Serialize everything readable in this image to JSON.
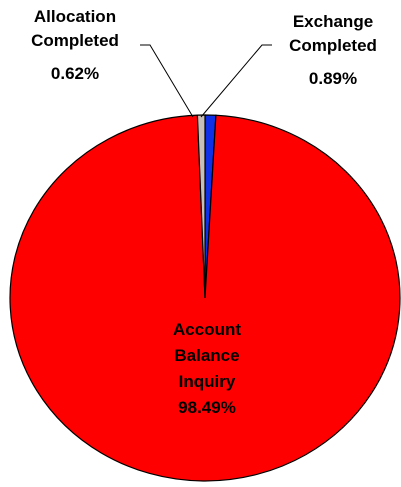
{
  "chart_data": {
    "type": "pie",
    "categories": [
      "Exchange Completed",
      "Account Balance Inquiry",
      "Allocation Completed"
    ],
    "values": [
      0.89,
      98.49,
      0.62
    ],
    "value_labels": [
      "0.89%",
      "98.49%",
      "0.62%"
    ],
    "colors": [
      "#1030e8",
      "#ff0000",
      "#c8c0b8"
    ]
  }
}
